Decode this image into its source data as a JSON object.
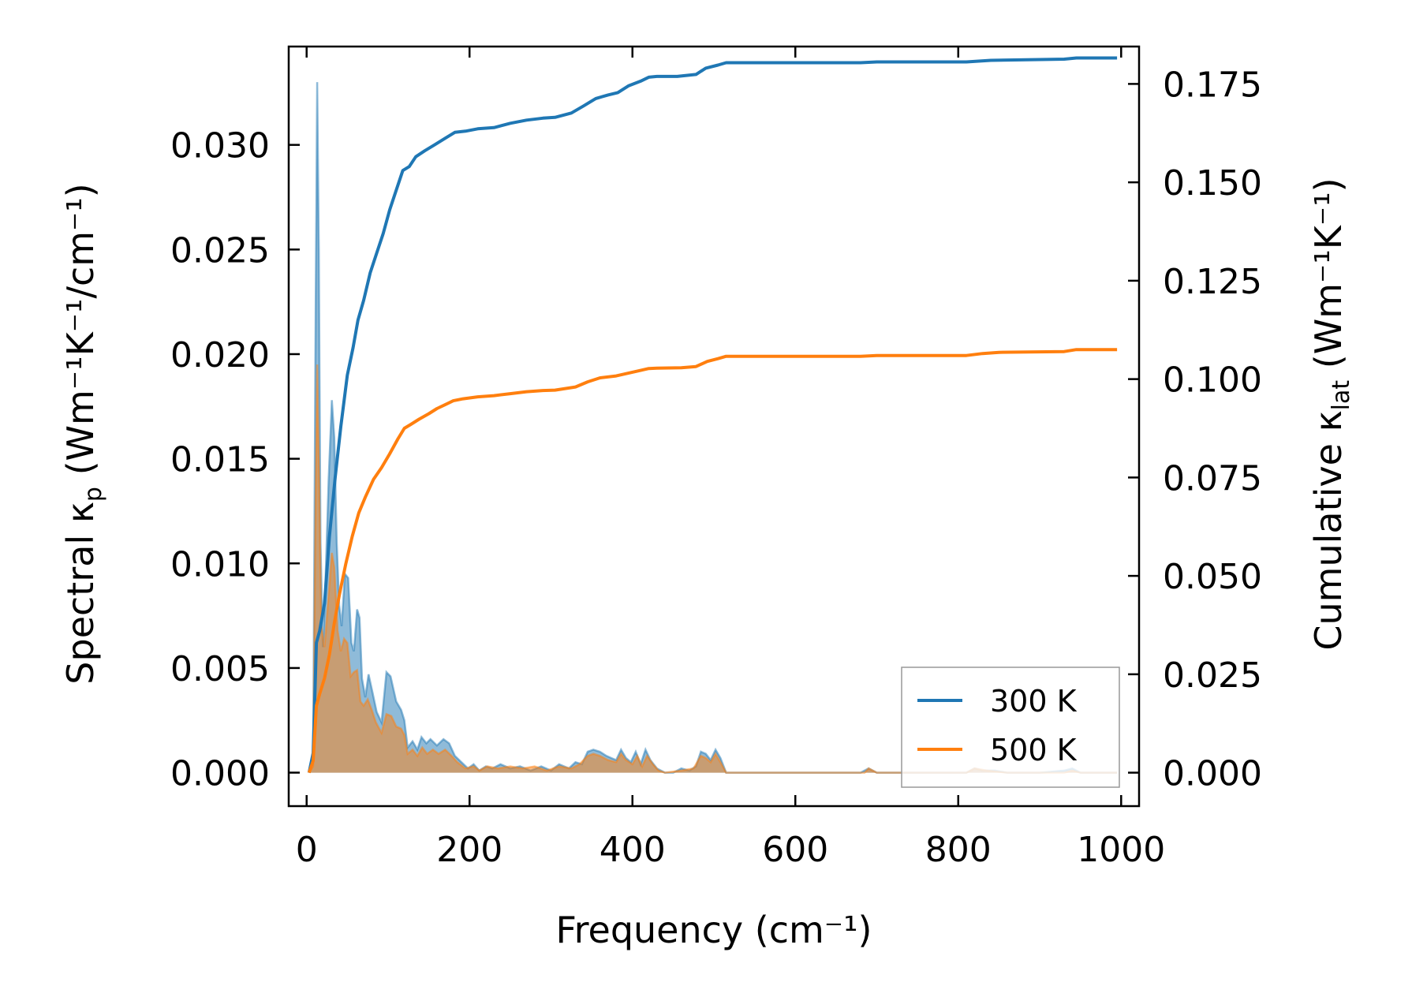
{
  "chart_data": {
    "type": "line",
    "xlabel": "Frequency (cm⁻¹)",
    "ylabel_left": {
      "pre": "Spectral κ",
      "sub": "p",
      "post": " (Wm⁻¹K⁻¹/cm⁻¹)"
    },
    "ylabel_right": {
      "pre": "Cumulative κ",
      "sub": "lat",
      "post": " (Wm⁻¹K⁻¹)"
    },
    "xlim": [
      -22,
      1022
    ],
    "ylim_left": [
      -0.0016,
      0.0347
    ],
    "ylim_right": [
      -0.0085,
      0.1845
    ],
    "x_ticks": [
      "0",
      "200",
      "400",
      "600",
      "800",
      "1000"
    ],
    "y_ticks_left": [
      "0.000",
      "0.005",
      "0.010",
      "0.015",
      "0.020",
      "0.025",
      "0.030"
    ],
    "y_ticks_right": [
      "0.000",
      "0.025",
      "0.050",
      "0.075",
      "0.100",
      "0.125",
      "0.150",
      "0.175"
    ],
    "grid": false,
    "legend_position": "bottom-right",
    "series": [
      {
        "name": "300 K",
        "color": "#1f77b4",
        "spectral": [
          [
            3,
            0
          ],
          [
            8,
            0.0005
          ],
          [
            11,
            0.022
          ],
          [
            13,
            0.033
          ],
          [
            15,
            0.025
          ],
          [
            17,
            0.011
          ],
          [
            20,
            0.006
          ],
          [
            23,
            0.009
          ],
          [
            27,
            0.014
          ],
          [
            31,
            0.0178
          ],
          [
            34,
            0.016
          ],
          [
            37,
            0.011
          ],
          [
            40,
            0.008
          ],
          [
            43,
            0.007
          ],
          [
            47,
            0.0095
          ],
          [
            51,
            0.0093
          ],
          [
            55,
            0.0062
          ],
          [
            58,
            0.0058
          ],
          [
            62,
            0.0078
          ],
          [
            65,
            0.0074
          ],
          [
            68,
            0.0045
          ],
          [
            72,
            0.0036
          ],
          [
            76,
            0.0047
          ],
          [
            81,
            0.0038
          ],
          [
            86,
            0.0029
          ],
          [
            92,
            0.0024
          ],
          [
            98,
            0.0048
          ],
          [
            103,
            0.0046
          ],
          [
            110,
            0.0034
          ],
          [
            116,
            0.003
          ],
          [
            120,
            0.0025
          ],
          [
            124,
            0.0012
          ],
          [
            130,
            0.0015
          ],
          [
            136,
            0.0011
          ],
          [
            141,
            0.0017
          ],
          [
            147,
            0.0014
          ],
          [
            152,
            0.0016
          ],
          [
            160,
            0.0013
          ],
          [
            168,
            0.0016
          ],
          [
            175,
            0.0014
          ],
          [
            182,
            0.0008
          ],
          [
            190,
            0.0005
          ],
          [
            198,
            0.0002
          ],
          [
            205,
            0.0004
          ],
          [
            212,
            0.0001
          ],
          [
            220,
            0.0003
          ],
          [
            228,
            0.0002
          ],
          [
            238,
            0.0004
          ],
          [
            250,
            0.0002
          ],
          [
            262,
            0.0003
          ],
          [
            275,
            0.0001
          ],
          [
            288,
            0.0003
          ],
          [
            300,
            0.0001
          ],
          [
            310,
            0.0004
          ],
          [
            322,
            0.0002
          ],
          [
            330,
            0.0005
          ],
          [
            338,
            0.0004
          ],
          [
            345,
            0.001
          ],
          [
            352,
            0.0011
          ],
          [
            360,
            0.001
          ],
          [
            368,
            0.0008
          ],
          [
            374,
            0.0007
          ],
          [
            380,
            0.0006
          ],
          [
            386,
            0.0011
          ],
          [
            392,
            0.0007
          ],
          [
            398,
            0.0005
          ],
          [
            404,
            0.001
          ],
          [
            410,
            0.0004
          ],
          [
            416,
            0.0011
          ],
          [
            422,
            0.0006
          ],
          [
            430,
            0.0002
          ],
          [
            440,
            0.0
          ],
          [
            450,
            0.0
          ],
          [
            460,
            0.0002
          ],
          [
            470,
            0.0001
          ],
          [
            478,
            0.0003
          ],
          [
            484,
            0.001
          ],
          [
            490,
            0.0009
          ],
          [
            496,
            0.0006
          ],
          [
            502,
            0.0011
          ],
          [
            508,
            0.0007
          ],
          [
            515,
            0.0
          ],
          [
            600,
            0.0
          ],
          [
            680,
            0.0
          ],
          [
            690,
            0.0002
          ],
          [
            700,
            0.0
          ],
          [
            800,
            0.0
          ],
          [
            810,
            0.0
          ],
          [
            820,
            0.0002
          ],
          [
            830,
            0.0001
          ],
          [
            845,
            0.0001
          ],
          [
            860,
            0.0
          ],
          [
            900,
            0.0
          ],
          [
            930,
            0.0001
          ],
          [
            940,
            0.0002
          ],
          [
            950,
            0.0
          ],
          [
            995,
            0.0
          ]
        ],
        "cumulative": [
          [
            3,
            0
          ],
          [
            8,
            0.005
          ],
          [
            12,
            0.033
          ],
          [
            16,
            0.036
          ],
          [
            22,
            0.043
          ],
          [
            28,
            0.06
          ],
          [
            35,
            0.075
          ],
          [
            42,
            0.088
          ],
          [
            50,
            0.101
          ],
          [
            57,
            0.108
          ],
          [
            63,
            0.115
          ],
          [
            70,
            0.12
          ],
          [
            78,
            0.127
          ],
          [
            86,
            0.132
          ],
          [
            94,
            0.137
          ],
          [
            102,
            0.143
          ],
          [
            110,
            0.148
          ],
          [
            118,
            0.153
          ],
          [
            126,
            0.154
          ],
          [
            134,
            0.1565
          ],
          [
            145,
            0.158
          ],
          [
            157,
            0.1595
          ],
          [
            170,
            0.1612
          ],
          [
            182,
            0.1627
          ],
          [
            195,
            0.163
          ],
          [
            210,
            0.1636
          ],
          [
            230,
            0.1639
          ],
          [
            250,
            0.165
          ],
          [
            270,
            0.1658
          ],
          [
            290,
            0.1663
          ],
          [
            305,
            0.1665
          ],
          [
            325,
            0.1676
          ],
          [
            340,
            0.1694
          ],
          [
            355,
            0.1713
          ],
          [
            370,
            0.1722
          ],
          [
            382,
            0.1728
          ],
          [
            395,
            0.1745
          ],
          [
            410,
            0.1757
          ],
          [
            420,
            0.1767
          ],
          [
            430,
            0.1769
          ],
          [
            455,
            0.1769
          ],
          [
            478,
            0.1774
          ],
          [
            490,
            0.179
          ],
          [
            505,
            0.1798
          ],
          [
            515,
            0.1804
          ],
          [
            600,
            0.1804
          ],
          [
            680,
            0.1804
          ],
          [
            700,
            0.1806
          ],
          [
            800,
            0.1806
          ],
          [
            810,
            0.1806
          ],
          [
            840,
            0.181
          ],
          [
            900,
            0.1812
          ],
          [
            930,
            0.1813
          ],
          [
            945,
            0.1816
          ],
          [
            995,
            0.1816
          ]
        ]
      },
      {
        "name": "500 K",
        "color": "#ff7f0e",
        "spectral": [
          [
            3,
            0
          ],
          [
            8,
            0.0003
          ],
          [
            11,
            0.013
          ],
          [
            13,
            0.0195
          ],
          [
            15,
            0.015
          ],
          [
            18,
            0.007
          ],
          [
            22,
            0.006
          ],
          [
            27,
            0.0085
          ],
          [
            31,
            0.0105
          ],
          [
            34,
            0.0098
          ],
          [
            38,
            0.0068
          ],
          [
            42,
            0.0058
          ],
          [
            46,
            0.0064
          ],
          [
            50,
            0.0062
          ],
          [
            54,
            0.0046
          ],
          [
            58,
            0.0048
          ],
          [
            62,
            0.0049
          ],
          [
            66,
            0.0034
          ],
          [
            70,
            0.0032
          ],
          [
            75,
            0.0035
          ],
          [
            80,
            0.003
          ],
          [
            85,
            0.0024
          ],
          [
            92,
            0.0019
          ],
          [
            98,
            0.0028
          ],
          [
            104,
            0.0027
          ],
          [
            110,
            0.0022
          ],
          [
            116,
            0.0021
          ],
          [
            120,
            0.0018
          ],
          [
            124,
            0.0009
          ],
          [
            130,
            0.0011
          ],
          [
            136,
            0.0008
          ],
          [
            142,
            0.0012
          ],
          [
            148,
            0.0009
          ],
          [
            155,
            0.0011
          ],
          [
            162,
            0.0009
          ],
          [
            170,
            0.0011
          ],
          [
            178,
            0.0008
          ],
          [
            185,
            0.0005
          ],
          [
            195,
            0.0002
          ],
          [
            205,
            0.0003
          ],
          [
            212,
            0.0001
          ],
          [
            222,
            0.0003
          ],
          [
            235,
            0.0002
          ],
          [
            250,
            0.0003
          ],
          [
            265,
            0.0002
          ],
          [
            280,
            0.0003
          ],
          [
            295,
            0.0001
          ],
          [
            310,
            0.0003
          ],
          [
            325,
            0.0002
          ],
          [
            335,
            0.0004
          ],
          [
            345,
            0.0008
          ],
          [
            352,
            0.0009
          ],
          [
            360,
            0.0008
          ],
          [
            370,
            0.0006
          ],
          [
            380,
            0.0005
          ],
          [
            386,
            0.0009
          ],
          [
            392,
            0.0006
          ],
          [
            400,
            0.0004
          ],
          [
            406,
            0.0008
          ],
          [
            412,
            0.0003
          ],
          [
            418,
            0.0008
          ],
          [
            425,
            0.0004
          ],
          [
            432,
            0.0001
          ],
          [
            440,
            0.0
          ],
          [
            460,
            0.0001
          ],
          [
            475,
            0.0002
          ],
          [
            484,
            0.0008
          ],
          [
            490,
            0.0007
          ],
          [
            496,
            0.0005
          ],
          [
            502,
            0.0009
          ],
          [
            508,
            0.0005
          ],
          [
            515,
            0.0
          ],
          [
            600,
            0.0
          ],
          [
            685,
            0.0
          ],
          [
            690,
            0.0002
          ],
          [
            700,
            0.0
          ],
          [
            810,
            0.0
          ],
          [
            820,
            0.0002
          ],
          [
            835,
            0.0001
          ],
          [
            860,
            0.0
          ],
          [
            930,
            0.0
          ],
          [
            940,
            0.0001
          ],
          [
            950,
            0.0
          ],
          [
            995,
            0.0
          ]
        ],
        "cumulative": [
          [
            3,
            0
          ],
          [
            8,
            0.003
          ],
          [
            12,
            0.017
          ],
          [
            16,
            0.02
          ],
          [
            22,
            0.024
          ],
          [
            28,
            0.03
          ],
          [
            34,
            0.038
          ],
          [
            40,
            0.045
          ],
          [
            48,
            0.053
          ],
          [
            56,
            0.06
          ],
          [
            64,
            0.066
          ],
          [
            72,
            0.07
          ],
          [
            82,
            0.0745
          ],
          [
            92,
            0.0775
          ],
          [
            102,
            0.081
          ],
          [
            112,
            0.0848
          ],
          [
            120,
            0.0875
          ],
          [
            128,
            0.0885
          ],
          [
            138,
            0.0898
          ],
          [
            150,
            0.0912
          ],
          [
            160,
            0.0925
          ],
          [
            170,
            0.0935
          ],
          [
            180,
            0.0945
          ],
          [
            192,
            0.095
          ],
          [
            210,
            0.0955
          ],
          [
            230,
            0.0958
          ],
          [
            250,
            0.0963
          ],
          [
            270,
            0.0968
          ],
          [
            290,
            0.0971
          ],
          [
            305,
            0.0972
          ],
          [
            330,
            0.098
          ],
          [
            345,
            0.0993
          ],
          [
            360,
            0.1003
          ],
          [
            380,
            0.1008
          ],
          [
            395,
            0.1015
          ],
          [
            410,
            0.1022
          ],
          [
            420,
            0.1027
          ],
          [
            430,
            0.1028
          ],
          [
            460,
            0.1029
          ],
          [
            478,
            0.1032
          ],
          [
            492,
            0.1045
          ],
          [
            505,
            0.1052
          ],
          [
            515,
            0.1058
          ],
          [
            600,
            0.1058
          ],
          [
            680,
            0.1058
          ],
          [
            700,
            0.106
          ],
          [
            800,
            0.106
          ],
          [
            810,
            0.106
          ],
          [
            830,
            0.1065
          ],
          [
            850,
            0.1068
          ],
          [
            930,
            0.107
          ],
          [
            945,
            0.1075
          ],
          [
            995,
            0.1075
          ]
        ]
      }
    ]
  }
}
